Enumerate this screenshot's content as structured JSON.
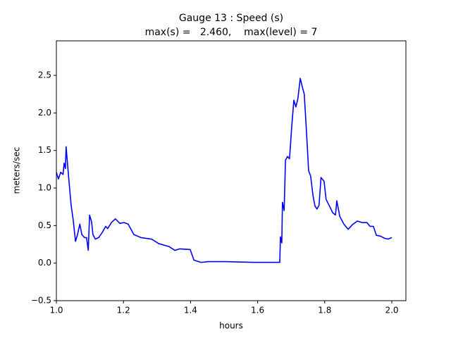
{
  "chart_data": {
    "type": "line",
    "title": "Gauge 13 : Speed (s)",
    "subtitle": "max(s) =   2.460,    max(level) = 7",
    "x_label": "hours",
    "y_label": "meters/sec",
    "xlim": [
      1.0,
      2.042
    ],
    "ylim": [
      -0.5,
      2.96
    ],
    "xticks": [
      {
        "value": 1.0,
        "label": "1.0"
      },
      1.2,
      1.4,
      1.6,
      1.8,
      {
        "value": 2.0,
        "label": "2.0"
      }
    ],
    "yticks": [
      {
        "value": -0.5,
        "label": "−0.5"
      },
      {
        "value": 0.0,
        "label": "0.0"
      },
      0.5,
      {
        "value": 1.0,
        "label": "1.0"
      },
      1.5,
      {
        "value": 2.0,
        "label": "2.0"
      },
      2.5
    ],
    "grid": false,
    "series": [
      {
        "name": "s",
        "color": "#0000ff",
        "x": [
          1.0,
          1.006,
          1.013,
          1.02,
          1.023,
          1.027,
          1.029,
          1.034,
          1.038,
          1.044,
          1.05,
          1.057,
          1.063,
          1.07,
          1.076,
          1.084,
          1.09,
          1.095,
          1.099,
          1.105,
          1.109,
          1.116,
          1.126,
          1.137,
          1.147,
          1.153,
          1.164,
          1.176,
          1.189,
          1.202,
          1.214,
          1.231,
          1.252,
          1.284,
          1.305,
          1.336,
          1.353,
          1.368,
          1.399,
          1.41,
          1.431,
          1.452,
          1.504,
          1.588,
          1.666,
          1.668,
          1.672,
          1.674,
          1.679,
          1.683,
          1.689,
          1.695,
          1.702,
          1.708,
          1.714,
          1.72,
          1.727,
          1.733,
          1.739,
          1.746,
          1.752,
          1.758,
          1.765,
          1.771,
          1.777,
          1.783,
          1.789,
          1.798,
          1.804,
          1.813,
          1.824,
          1.832,
          1.836,
          1.845,
          1.857,
          1.87,
          1.882,
          1.897,
          1.912,
          1.926,
          1.935,
          1.945,
          1.954,
          1.966,
          1.979,
          1.989,
          2.0
        ],
        "values": [
          1.21,
          1.12,
          1.21,
          1.18,
          1.33,
          1.26,
          1.55,
          1.28,
          1.07,
          0.77,
          0.58,
          0.29,
          0.38,
          0.52,
          0.38,
          0.34,
          0.34,
          0.17,
          0.64,
          0.55,
          0.38,
          0.32,
          0.34,
          0.41,
          0.49,
          0.46,
          0.54,
          0.59,
          0.53,
          0.54,
          0.52,
          0.38,
          0.34,
          0.32,
          0.26,
          0.22,
          0.17,
          0.19,
          0.18,
          0.04,
          0.01,
          0.02,
          0.02,
          0.01,
          0.01,
          0.35,
          0.27,
          0.81,
          0.7,
          1.37,
          1.42,
          1.39,
          1.84,
          2.17,
          2.08,
          2.19,
          2.46,
          2.35,
          2.25,
          1.72,
          1.23,
          1.16,
          0.9,
          0.76,
          0.72,
          0.77,
          1.14,
          1.09,
          0.85,
          0.77,
          0.67,
          0.64,
          0.83,
          0.62,
          0.52,
          0.45,
          0.51,
          0.56,
          0.54,
          0.54,
          0.49,
          0.49,
          0.37,
          0.36,
          0.33,
          0.32,
          0.34
        ]
      }
    ]
  }
}
